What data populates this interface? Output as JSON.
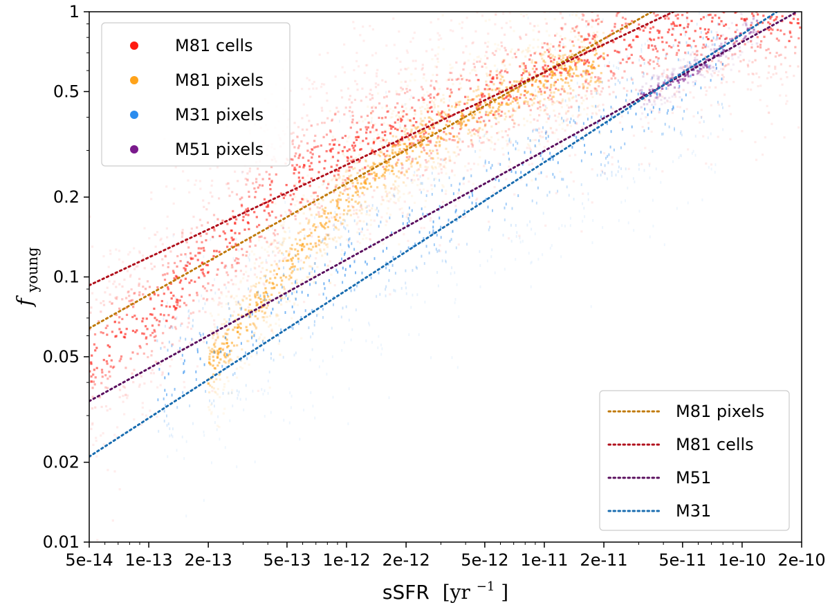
{
  "chart_data": {
    "type": "scatter",
    "title": "",
    "xlabel": "sSFR",
    "xlabel_unit": "[yr",
    "xlabel_unit_exp": "−1",
    "xlabel_unit_close": "]",
    "ylabel": "f",
    "ylabel_sub": "young",
    "xscale": "log",
    "yscale": "log",
    "xlim": [
      5e-14,
      2e-10
    ],
    "ylim": [
      0.01,
      1
    ],
    "xticks": [
      {
        "value": 5e-14,
        "label": "5e-14"
      },
      {
        "value": 1e-13,
        "label": "1e-13"
      },
      {
        "value": 2e-13,
        "label": "2e-13"
      },
      {
        "value": 5e-13,
        "label": "5e-13"
      },
      {
        "value": 1e-12,
        "label": "1e-12"
      },
      {
        "value": 2e-12,
        "label": "2e-12"
      },
      {
        "value": 5e-12,
        "label": "5e-12"
      },
      {
        "value": 1e-11,
        "label": "1e-11"
      },
      {
        "value": 2e-11,
        "label": "2e-11"
      },
      {
        "value": 5e-11,
        "label": "5e-11"
      },
      {
        "value": 1e-10,
        "label": "1e-10"
      },
      {
        "value": 2e-10,
        "label": "2e-10"
      }
    ],
    "yticks": [
      {
        "value": 0.01,
        "label": "0.01"
      },
      {
        "value": 0.02,
        "label": "0.02"
      },
      {
        "value": 0.05,
        "label": "0.05"
      },
      {
        "value": 0.1,
        "label": "0.1"
      },
      {
        "value": 0.2,
        "label": "0.2"
      },
      {
        "value": 0.5,
        "label": "0.5"
      },
      {
        "value": 1,
        "label": "1"
      }
    ],
    "scatter_legend": {
      "position": "upper-left",
      "entries": [
        {
          "name": "M81 cells",
          "color": "#ff1a10"
        },
        {
          "name": "M81 pixels",
          "color": "#ffa31a"
        },
        {
          "name": "M31 pixels",
          "color": "#2b8cee"
        },
        {
          "name": "M51 pixels",
          "color": "#7a1a8c"
        }
      ]
    },
    "density_clouds": [
      {
        "name": "M81 cells",
        "color": "#ff1a10",
        "ridge": [
          [
            5e-14,
            0.048
          ],
          [
            1e-13,
            0.07
          ],
          [
            2e-13,
            0.12
          ],
          [
            5e-13,
            0.22
          ],
          [
            1e-12,
            0.3
          ],
          [
            2e-12,
            0.36
          ],
          [
            5e-12,
            0.47
          ],
          [
            1e-11,
            0.6
          ],
          [
            2e-11,
            0.74
          ],
          [
            5e-11,
            0.87
          ],
          [
            1e-10,
            0.93
          ],
          [
            2e-10,
            0.96
          ]
        ],
        "spread_dex": 0.2
      },
      {
        "name": "M81 pixels",
        "color": "#ffa31a",
        "ridge": [
          [
            2e-13,
            0.045
          ],
          [
            5e-13,
            0.11
          ],
          [
            1e-12,
            0.2
          ],
          [
            2e-12,
            0.3
          ],
          [
            5e-12,
            0.45
          ],
          [
            1e-11,
            0.56
          ],
          [
            2e-11,
            0.66
          ]
        ],
        "spread_dex": 0.12
      },
      {
        "name": "M31 pixels",
        "color": "#2b8cee",
        "ridge": [
          [
            1.1e-13,
            0.04
          ],
          [
            3e-13,
            0.06
          ],
          [
            1e-12,
            0.11
          ],
          [
            3e-12,
            0.17
          ],
          [
            1e-11,
            0.28
          ],
          [
            3e-11,
            0.42
          ],
          [
            8e-11,
            0.65
          ]
        ],
        "spread_dex": 0.22
      },
      {
        "name": "M51 pixels",
        "color": "#7a1a8c",
        "ridge": [
          [
            3e-11,
            0.47
          ],
          [
            5e-11,
            0.56
          ],
          [
            8e-11,
            0.72
          ],
          [
            1.2e-10,
            0.9
          ]
        ],
        "spread_dex": 0.04
      }
    ],
    "fit_legend": {
      "position": "lower-right",
      "entries": [
        {
          "name": "M81 pixels",
          "color": "#c07a0b"
        },
        {
          "name": "M81 cells",
          "color": "#b0101c"
        },
        {
          "name": "M51",
          "color": "#5a0f5e"
        },
        {
          "name": "M31",
          "color": "#1a6db0"
        }
      ]
    },
    "series": [
      {
        "name": "M81 pixels",
        "line_style": "dotted",
        "color": "#c07a0b",
        "x": [
          5e-14,
          3.5e-11
        ],
        "y": [
          0.064,
          1.0
        ]
      },
      {
        "name": "M81 cells",
        "line_style": "dotted",
        "color": "#b0101c",
        "x": [
          5e-14,
          4.5e-11
        ],
        "y": [
          0.093,
          1.0
        ]
      },
      {
        "name": "M51",
        "line_style": "dotted",
        "color": "#5a0f5e",
        "x": [
          5e-14,
          1.9e-10
        ],
        "y": [
          0.034,
          1.0
        ]
      },
      {
        "name": "M31",
        "line_style": "dotted",
        "color": "#1a6db0",
        "x": [
          5e-14,
          1.5e-10
        ],
        "y": [
          0.021,
          1.0
        ]
      }
    ]
  }
}
